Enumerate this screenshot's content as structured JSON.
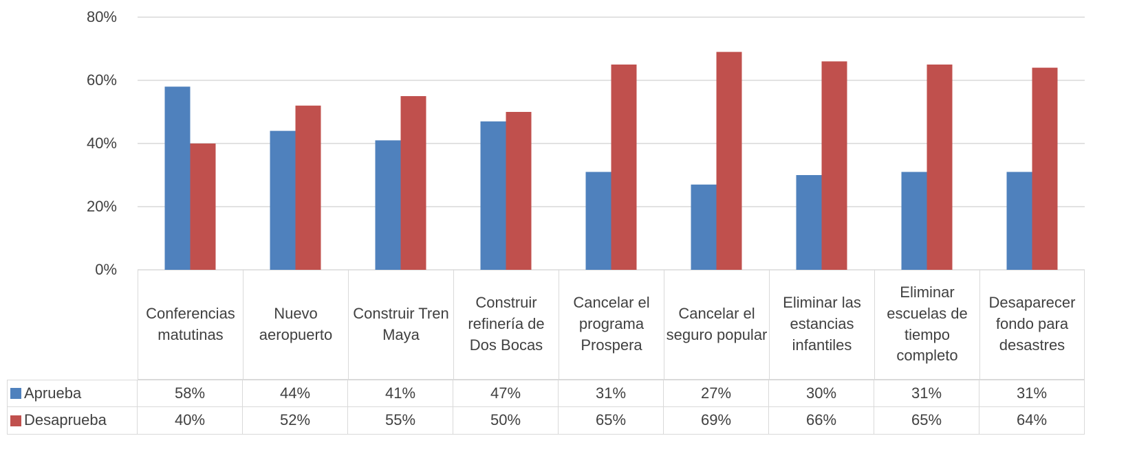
{
  "chart_data": {
    "type": "bar",
    "categories": [
      "Conferencias matutinas",
      "Nuevo aeropuerto",
      "Construir Tren Maya",
      "Construir refinería de Dos Bocas",
      "Cancelar el programa Prospera",
      "Cancelar el seguro popular",
      "Eliminar las estancias infantiles",
      "Eliminar escuelas de tiempo completo",
      "Desaparecer fondo para desastres"
    ],
    "series": [
      {
        "name": "Aprueba",
        "color": "#4f81bd",
        "values": [
          58,
          44,
          41,
          47,
          31,
          27,
          30,
          31,
          31
        ],
        "value_labels": [
          "58%",
          "44%",
          "41%",
          "47%",
          "31%",
          "27%",
          "30%",
          "31%",
          "31%"
        ]
      },
      {
        "name": "Desaprueba",
        "color": "#c0504d",
        "values": [
          40,
          52,
          55,
          50,
          65,
          69,
          66,
          65,
          64
        ],
        "value_labels": [
          "40%",
          "52%",
          "55%",
          "50%",
          "65%",
          "69%",
          "66%",
          "65%",
          "64%"
        ]
      }
    ],
    "ylim": [
      0,
      80
    ],
    "yticks": [
      {
        "value": 0,
        "label": "0%"
      },
      {
        "value": 20,
        "label": "20%"
      },
      {
        "value": 40,
        "label": "40%"
      },
      {
        "value": 60,
        "label": "60%"
      },
      {
        "value": 80,
        "label": "80%"
      }
    ],
    "grid": true
  }
}
